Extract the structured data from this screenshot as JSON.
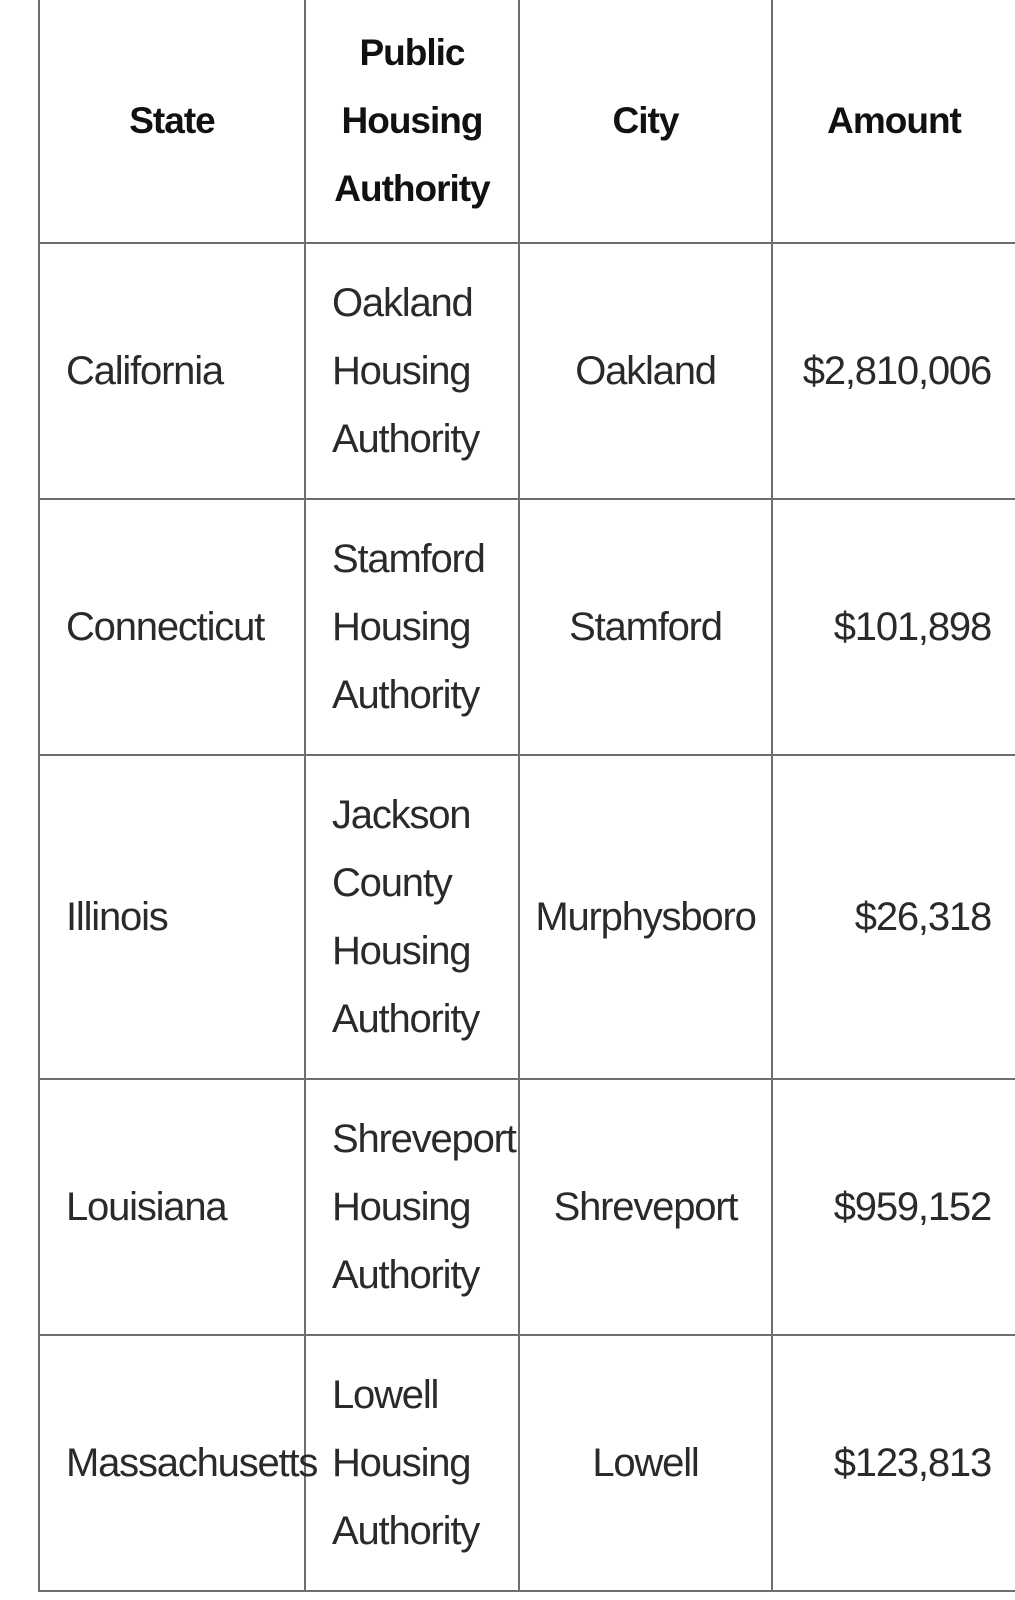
{
  "table": {
    "headers": {
      "state": "State",
      "pha": "Public Housing Authority",
      "city": "City",
      "amount": "Amount"
    },
    "rows": [
      {
        "state": "California",
        "pha": "Oakland Housing Authority",
        "city": "Oakland",
        "amount": "$2,810,006"
      },
      {
        "state": "Connecticut",
        "pha": "Stamford Housing Authority",
        "city": "Stamford",
        "amount": "$101,898"
      },
      {
        "state": "Illinois",
        "pha": "Jackson County Housing Authority",
        "city": "Murphysboro",
        "amount": "$26,318"
      },
      {
        "state": "Louisiana",
        "pha": "Shreveport Housing Authority",
        "city": "Shreveport",
        "amount": "$959,152"
      },
      {
        "state": "Massachusetts",
        "pha": "Lowell Housing Authority",
        "city": "Lowell",
        "amount": "$123,813"
      }
    ]
  }
}
